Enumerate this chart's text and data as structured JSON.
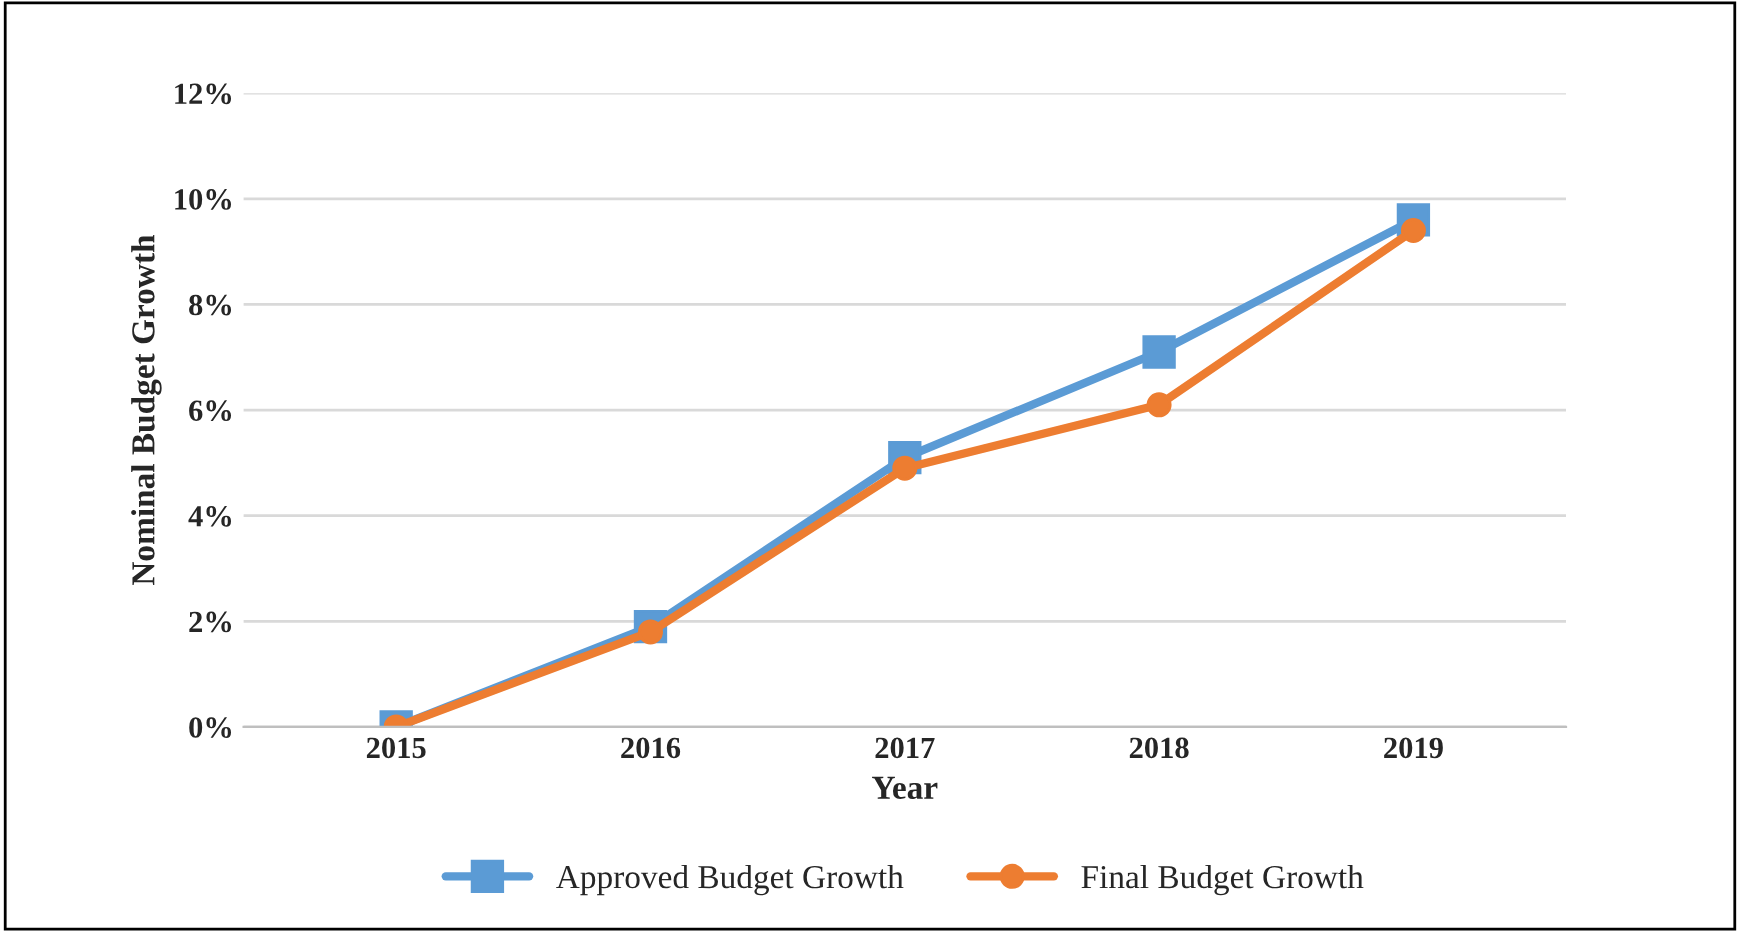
{
  "chart_data": {
    "type": "line",
    "xlabel": "Year",
    "ylabel": "Nominal Budget Growth",
    "categories": [
      "2015",
      "2016",
      "2017",
      "2018",
      "2019"
    ],
    "series": [
      {
        "name": "Approved Budget Growth",
        "color": "#5b9bd5",
        "marker": "square",
        "values": [
          0,
          1.9,
          5.1,
          7.1,
          9.6
        ]
      },
      {
        "name": "Final Budget Growth",
        "color": "#ed7d31",
        "marker": "circle",
        "values": [
          0,
          1.8,
          4.9,
          6.1,
          9.4
        ]
      }
    ],
    "ylim": [
      0,
      12
    ],
    "yticks": [
      {
        "value": 0,
        "label": "0%"
      },
      {
        "value": 2,
        "label": "2%"
      },
      {
        "value": 4,
        "label": "4%"
      },
      {
        "value": 6,
        "label": "6%"
      },
      {
        "value": 8,
        "label": "8%"
      },
      {
        "value": 10,
        "label": "10%"
      },
      {
        "value": 12,
        "label": "12%"
      }
    ],
    "grid": "y",
    "legend": "bottom",
    "line_style": "solid"
  }
}
